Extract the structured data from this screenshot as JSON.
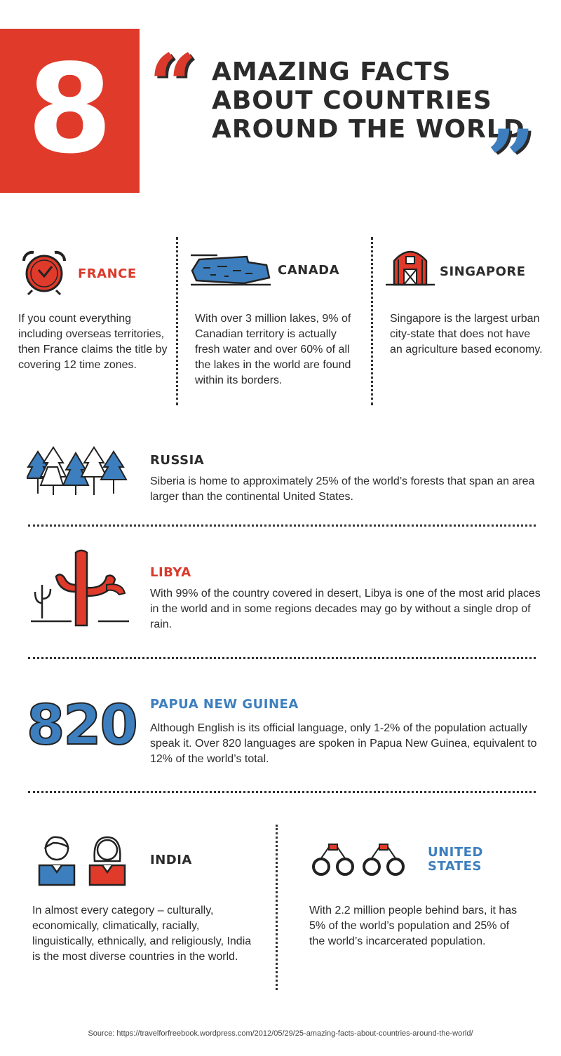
{
  "header": {
    "number": "8",
    "title": "AMAZING FACTS ABOUT COUNTRIES AROUND THE WORLD",
    "open_quote": "“",
    "close_quote": "”"
  },
  "facts": [
    {
      "country": "FRANCE",
      "text": "If you count everything including overseas territories, then France claims the title by covering 12 time zones.",
      "icon": "alarm-clock-icon",
      "color": "#d93a2b"
    },
    {
      "country": "CANADA",
      "text": "With over 3 million lakes, 9% of Canadian territory is actually fresh water and over 60% of all the lakes in the world are found within its borders.",
      "icon": "lake-icon",
      "color": "#2b2b2b"
    },
    {
      "country": "SINGAPORE",
      "text": "Singapore is the largest urban city-state that does not have an agriculture based economy.",
      "icon": "barn-icon",
      "color": "#2b2b2b"
    },
    {
      "country": "RUSSIA",
      "text": "Siberia is home to approximately 25% of the world’s forests that span an area larger than the continental United States.",
      "icon": "forest-icon",
      "color": "#2b2b2b"
    },
    {
      "country": "LIBYA",
      "text": "With 99% of the country covered in desert, Libya is one of the most arid places in the world and in some regions decades may go by without a single drop of rain.",
      "icon": "cactus-icon",
      "color": "#d93a2b"
    },
    {
      "country": "PAPUA NEW GUINEA",
      "text": "Although English is its official language, only 1-2% of the population actually speak it. Over 820 languages are spoken in Papua New Guinea, equivalent to 12% of the world’s total.",
      "number": "820",
      "color": "#3d7fbe"
    },
    {
      "country": "INDIA",
      "text": "In almost every category – culturally, economically, climatically, racially, linguistically, ethnically, and religiously, India is the most diverse countries in the world.",
      "icon": "people-icon",
      "color": "#2b2b2b"
    },
    {
      "country": "UNITED STATES",
      "text": "With 2.2 million people behind bars, it has 5% of the world’s population and 25% of the world’s incarcerated population.",
      "icon": "handcuffs-icon",
      "color": "#3d7fbe"
    }
  ],
  "source": "Source: https://travelforfreebook.wordpress.com/2012/05/29/25-amazing-facts-about-countries-around-the-world/"
}
